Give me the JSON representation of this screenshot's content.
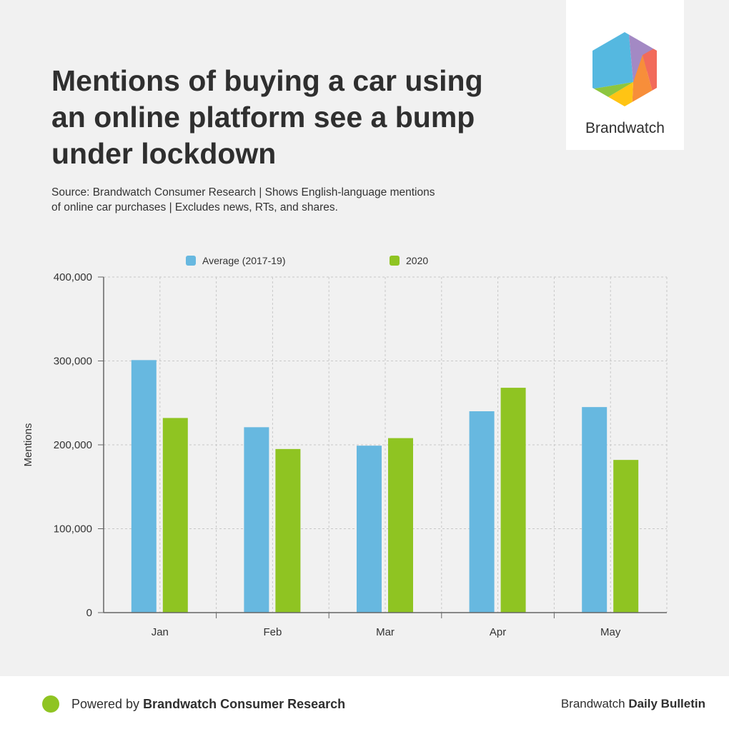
{
  "brand": {
    "logo_text": "Brandwatch"
  },
  "header": {
    "title": "Mentions of buying a car using an online platform see a bump under lockdown",
    "subtitle": "Source: Brandwatch Consumer Research | Shows English-language mentions of online car purchases | Excludes news, RTs, and shares."
  },
  "colors": {
    "series_1": "#67b8e0",
    "series_2": "#8fc422",
    "background": "#f1f1f1",
    "footer_dot": "#8fc422"
  },
  "chart_data": {
    "type": "bar",
    "categories": [
      "Jan",
      "Feb",
      "Mar",
      "Apr",
      "May"
    ],
    "series": [
      {
        "name": "Average (2017-19)",
        "color": "#67b8e0",
        "values": [
          301000,
          221000,
          199000,
          240000,
          245000
        ]
      },
      {
        "name": "2020",
        "color": "#8fc422",
        "values": [
          232000,
          195000,
          208000,
          268000,
          182000
        ]
      }
    ],
    "xlabel": "",
    "ylabel": "Mentions",
    "ylim": [
      0,
      400000
    ],
    "yticks": [
      0,
      100000,
      200000,
      300000,
      400000
    ],
    "ytick_labels": [
      "0",
      "100,000",
      "200,000",
      "300,000",
      "400,000"
    ],
    "grid": true,
    "legend_position": "top"
  },
  "footer": {
    "left_prefix": "Powered by ",
    "left_bold": "Brandwatch Consumer Research",
    "right_prefix": "Brandwatch ",
    "right_bold": "Daily Bulletin"
  }
}
